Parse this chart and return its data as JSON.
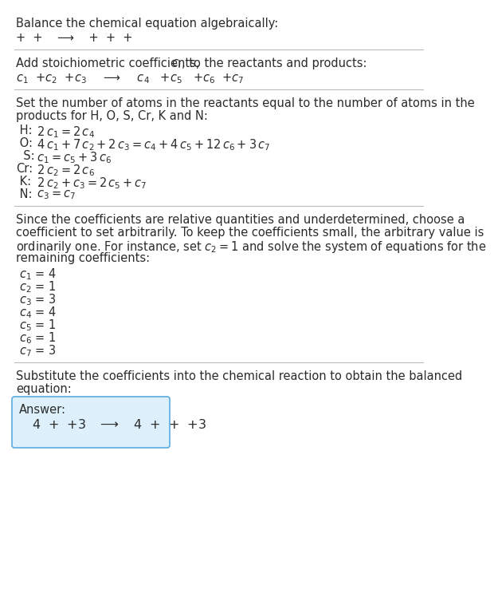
{
  "title": "Balance the chemical equation algebraically:",
  "line1": "+  +    ⟶    +  +  +",
  "section1_title_plain": "Add stoichiometric coefficients, ",
  "section1_title_ci": "c",
  "section1_title_i": "i",
  "section1_title_rest": ", to the reactants and products:",
  "line2_plain": " +",
  "coeff_eq_line": "c_1 +c_2 +c_3   ⟶   c_4  +c_5  +c_6 +c_7",
  "section2_line1": "Set the number of atoms in the reactants equal to the number of atoms in the",
  "section2_line2": "products for H, O, S, Cr, K and N:",
  "equations": [
    " H:  2 c_1 = 2 c_4",
    " O:  4 c_1 + 7 c_2 + 2 c_3 = c_4 + 4 c_5 + 12 c_6 + 3 c_7",
    "  S:  c_1 = c_5 + 3 c_6",
    "Cr:  2 c_2 = 2 c_6",
    " K:  2 c_2 + c_3 = 2 c_5 + c_7",
    " N:  c_3 = c_7"
  ],
  "section3_lines": [
    "Since the coefficients are relative quantities and underdetermined, choose a",
    "coefficient to set arbitrarily. To keep the coefficients small, the arbitrary value is",
    "ordinarily one. For instance, set c_2 = 1 and solve the system of equations for the",
    "remaining coefficients:"
  ],
  "coeff_lines": [
    "c_1 = 4",
    "c_2 = 1",
    "c_3 = 3",
    "c_4 = 4",
    "c_5 = 1",
    "c_6 = 1",
    "c_7 = 3"
  ],
  "section4_line1": "Substitute the coefficients into the chemical reaction to obtain the balanced",
  "section4_line2": "equation:",
  "answer_label": "Answer:",
  "answer_eq": "4  +  + 3    ⟶    4  +  +  + 3",
  "bg_color": "#ffffff",
  "text_color": "#2b2b2b",
  "box_fill": "#ddf0fc",
  "box_edge": "#5aade0",
  "sep_color": "#bbbbbb",
  "fs": 10.5
}
